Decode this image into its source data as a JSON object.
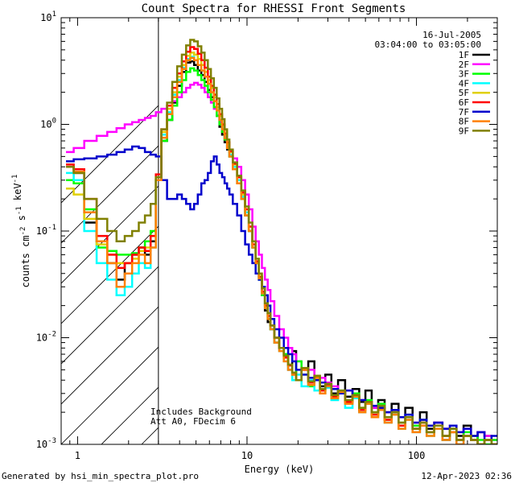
{
  "chart_data": {
    "type": "line",
    "title": "Count Spectra for RHESSI Front Segments",
    "xlabel": "Energy (keV)",
    "ylabel": "counts cm^-2 s^-1 keV^-1",
    "x_scale": "log",
    "y_scale": "log",
    "xlim": [
      0.8,
      300
    ],
    "ylim": [
      0.001,
      10
    ],
    "x_major_ticks": [
      1,
      10,
      100
    ],
    "x_tick_labels": [
      "1",
      "10",
      "100"
    ],
    "y_major_ticks": [
      0.001,
      0.01,
      0.1,
      1,
      10
    ],
    "y_tick_labels": [
      "10-3",
      "10-2",
      "10-1",
      "100",
      "101"
    ],
    "grid": false,
    "legend_placement": "top-right",
    "date": "16-Jul-2005",
    "time_range": "03:04:00 to 03:05:00",
    "annotations": [
      "Includes Background",
      "Att A0, FDecim 6"
    ],
    "hatched_region": {
      "x_from": 0.8,
      "x_to": 3
    },
    "footer_left": "Generated by hsi_min_spectra_plot.pro",
    "footer_right": "12-Apr-2023 02:36",
    "energy": [
      0.9,
      1.0,
      1.2,
      1.4,
      1.6,
      1.8,
      2.0,
      2.2,
      2.4,
      2.6,
      2.8,
      3.0,
      3.25,
      3.5,
      3.75,
      4.0,
      4.25,
      4.5,
      4.75,
      5.0,
      5.25,
      5.5,
      5.75,
      6.0,
      6.25,
      6.5,
      6.75,
      7.0,
      7.25,
      7.5,
      7.75,
      8.0,
      8.5,
      9.0,
      9.5,
      10,
      10.5,
      11,
      11.5,
      12,
      12.5,
      13,
      13.5,
      14,
      15,
      16,
      17,
      18,
      19,
      20,
      22,
      24,
      26,
      28,
      30,
      33,
      36,
      40,
      44,
      48,
      52,
      57,
      62,
      68,
      75,
      82,
      90,
      100,
      110,
      120,
      135,
      150,
      165,
      180,
      200,
      220,
      240,
      265,
      290
    ],
    "series": [
      {
        "name": "1F",
        "color": "#000000",
        "values": [
          0.4,
          0.35,
          0.12,
          0.08,
          0.05,
          0.035,
          0.05,
          0.06,
          0.07,
          0.06,
          0.08,
          0.3,
          0.7,
          1.1,
          1.6,
          2.3,
          3.1,
          3.8,
          3.9,
          3.6,
          3.2,
          2.9,
          2.5,
          2.1,
          1.8,
          1.45,
          1.2,
          0.95,
          0.8,
          0.68,
          0.58,
          0.5,
          0.38,
          0.28,
          0.2,
          0.14,
          0.1,
          0.07,
          0.05,
          0.035,
          0.025,
          0.018,
          0.014,
          0.012,
          0.009,
          0.008,
          0.007,
          0.005,
          0.0075,
          0.004,
          0.005,
          0.006,
          0.004,
          0.0035,
          0.0045,
          0.003,
          0.004,
          0.0028,
          0.0033,
          0.0025,
          0.0032,
          0.0022,
          0.0026,
          0.002,
          0.0024,
          0.0018,
          0.0022,
          0.0015,
          0.002,
          0.0014,
          0.0016,
          0.0011,
          0.0014,
          0.0012,
          0.0015,
          0.0011,
          0.0013,
          0.0012,
          0.001
        ]
      },
      {
        "name": "2F",
        "color": "#ff00ff",
        "values": [
          0.55,
          0.6,
          0.7,
          0.78,
          0.85,
          0.92,
          1.0,
          1.05,
          1.1,
          1.15,
          1.2,
          1.3,
          1.4,
          1.5,
          1.65,
          1.8,
          2.0,
          2.2,
          2.35,
          2.45,
          2.35,
          2.2,
          2.0,
          1.8,
          1.6,
          1.4,
          1.22,
          1.05,
          0.9,
          0.78,
          0.68,
          0.58,
          0.48,
          0.4,
          0.3,
          0.22,
          0.16,
          0.11,
          0.08,
          0.06,
          0.045,
          0.035,
          0.028,
          0.022,
          0.016,
          0.012,
          0.01,
          0.008,
          0.007,
          0.006,
          0.005,
          0.005,
          0.004,
          0.0042,
          0.0038,
          0.0035,
          0.003,
          0.0032,
          0.0028,
          0.0026,
          0.0025,
          0.0022,
          0.0024,
          0.002,
          0.0021,
          0.0018,
          0.0019,
          0.0016,
          0.0017,
          0.0015,
          0.0016,
          0.0014,
          0.0015,
          0.0013,
          0.0014,
          0.0012,
          0.0013,
          0.0012,
          0.0011
        ]
      },
      {
        "name": "3F",
        "color": "#00ff00",
        "values": [
          0.3,
          0.28,
          0.16,
          0.07,
          0.065,
          0.06,
          0.06,
          0.062,
          0.07,
          0.08,
          0.1,
          0.3,
          0.7,
          1.1,
          1.5,
          2.0,
          2.6,
          3.1,
          3.35,
          3.2,
          2.9,
          2.6,
          2.3,
          2.0,
          1.7,
          1.45,
          1.2,
          1.0,
          0.85,
          0.72,
          0.6,
          0.5,
          0.38,
          0.28,
          0.2,
          0.14,
          0.1,
          0.07,
          0.05,
          0.035,
          0.025,
          0.02,
          0.015,
          0.012,
          0.009,
          0.008,
          0.007,
          0.0055,
          0.004,
          0.006,
          0.0045,
          0.0035,
          0.004,
          0.003,
          0.0035,
          0.0028,
          0.0032,
          0.0025,
          0.003,
          0.0022,
          0.0026,
          0.002,
          0.0024,
          0.0018,
          0.002,
          0.0016,
          0.0019,
          0.0015,
          0.0017,
          0.0013,
          0.0015,
          0.0012,
          0.0014,
          0.0011,
          0.0013,
          0.0012,
          0.0011,
          0.001,
          0.0011
        ]
      },
      {
        "name": "4F",
        "color": "#00ffff",
        "values": [
          0.35,
          0.3,
          0.1,
          0.05,
          0.035,
          0.025,
          0.03,
          0.04,
          0.05,
          0.045,
          0.07,
          0.3,
          0.8,
          1.3,
          1.9,
          2.6,
          3.4,
          4.1,
          4.3,
          4.0,
          3.6,
          3.2,
          2.8,
          2.4,
          2.0,
          1.65,
          1.35,
          1.1,
          0.9,
          0.75,
          0.62,
          0.52,
          0.4,
          0.3,
          0.21,
          0.15,
          0.1,
          0.07,
          0.05,
          0.036,
          0.026,
          0.019,
          0.015,
          0.012,
          0.009,
          0.0075,
          0.006,
          0.005,
          0.004,
          0.0045,
          0.0035,
          0.004,
          0.0032,
          0.003,
          0.0034,
          0.0026,
          0.003,
          0.0022,
          0.0027,
          0.002,
          0.0024,
          0.0018,
          0.0021,
          0.0016,
          0.0019,
          0.0014,
          0.0017,
          0.0013,
          0.0015,
          0.0012,
          0.0014,
          0.0011,
          0.0013,
          0.001,
          0.0012,
          0.0011,
          0.001,
          0.0011,
          0.001
        ]
      },
      {
        "name": "5F",
        "color": "#e0d000",
        "values": [
          0.25,
          0.22,
          0.13,
          0.075,
          0.06,
          0.05,
          0.05,
          0.055,
          0.065,
          0.07,
          0.09,
          0.32,
          0.85,
          1.4,
          2.0,
          2.8,
          3.6,
          4.4,
          4.7,
          4.5,
          4.1,
          3.6,
          3.1,
          2.6,
          2.2,
          1.8,
          1.45,
          1.2,
          0.98,
          0.8,
          0.66,
          0.55,
          0.42,
          0.32,
          0.22,
          0.16,
          0.11,
          0.075,
          0.052,
          0.038,
          0.027,
          0.02,
          0.016,
          0.013,
          0.01,
          0.008,
          0.0065,
          0.0055,
          0.0045,
          0.004,
          0.005,
          0.0038,
          0.0042,
          0.0032,
          0.0036,
          0.0028,
          0.0031,
          0.0025,
          0.0028,
          0.0021,
          0.0025,
          0.0019,
          0.0022,
          0.0017,
          0.002,
          0.0015,
          0.0018,
          0.0014,
          0.0016,
          0.0013,
          0.0015,
          0.0012,
          0.0013,
          0.0011,
          0.0012,
          0.0011,
          0.001,
          0.0011,
          0.001
        ]
      },
      {
        "name": "6F",
        "color": "#ff0000",
        "values": [
          0.42,
          0.38,
          0.2,
          0.09,
          0.06,
          0.045,
          0.05,
          0.06,
          0.07,
          0.065,
          0.09,
          0.34,
          0.9,
          1.5,
          2.2,
          3.0,
          3.9,
          4.8,
          5.3,
          5.1,
          4.6,
          4.0,
          3.4,
          2.8,
          2.3,
          1.9,
          1.55,
          1.25,
          1.0,
          0.82,
          0.68,
          0.56,
          0.43,
          0.32,
          0.23,
          0.16,
          0.11,
          0.075,
          0.052,
          0.037,
          0.027,
          0.02,
          0.016,
          0.013,
          0.01,
          0.008,
          0.0065,
          0.0055,
          0.0045,
          0.004,
          0.005,
          0.0038,
          0.0042,
          0.0032,
          0.0036,
          0.0028,
          0.0031,
          0.0025,
          0.0028,
          0.0021,
          0.0025,
          0.0019,
          0.0022,
          0.0017,
          0.002,
          0.0015,
          0.0018,
          0.0014,
          0.0016,
          0.0013,
          0.0015,
          0.0012,
          0.0013,
          0.0011,
          0.0012,
          0.0011,
          0.001,
          0.0011,
          0.001
        ]
      },
      {
        "name": "7F",
        "color": "#0000cc",
        "values": [
          0.45,
          0.47,
          0.48,
          0.5,
          0.52,
          0.55,
          0.58,
          0.62,
          0.6,
          0.55,
          0.52,
          0.5,
          0.3,
          0.2,
          0.2,
          0.22,
          0.2,
          0.18,
          0.16,
          0.18,
          0.22,
          0.28,
          0.3,
          0.35,
          0.45,
          0.5,
          0.42,
          0.35,
          0.32,
          0.28,
          0.25,
          0.22,
          0.18,
          0.14,
          0.1,
          0.075,
          0.06,
          0.05,
          0.04,
          0.035,
          0.03,
          0.025,
          0.02,
          0.015,
          0.012,
          0.01,
          0.008,
          0.007,
          0.006,
          0.005,
          0.0045,
          0.0042,
          0.004,
          0.0038,
          0.0035,
          0.0033,
          0.003,
          0.0032,
          0.0028,
          0.0026,
          0.0025,
          0.0023,
          0.0022,
          0.002,
          0.0021,
          0.0018,
          0.0019,
          0.0016,
          0.0017,
          0.0015,
          0.0016,
          0.0014,
          0.0015,
          0.0013,
          0.0014,
          0.0012,
          0.0013,
          0.0011,
          0.0012
        ]
      },
      {
        "name": "8F",
        "color": "#ff8000",
        "values": [
          0.4,
          0.36,
          0.15,
          0.08,
          0.05,
          0.03,
          0.04,
          0.05,
          0.06,
          0.05,
          0.07,
          0.3,
          0.75,
          1.25,
          1.8,
          2.5,
          3.3,
          4.0,
          4.2,
          4.0,
          3.6,
          3.2,
          2.8,
          2.4,
          2.0,
          1.65,
          1.35,
          1.1,
          0.9,
          0.74,
          0.6,
          0.5,
          0.38,
          0.28,
          0.2,
          0.14,
          0.1,
          0.07,
          0.05,
          0.036,
          0.026,
          0.019,
          0.015,
          0.012,
          0.009,
          0.0075,
          0.006,
          0.005,
          0.0045,
          0.004,
          0.005,
          0.0036,
          0.0042,
          0.003,
          0.0035,
          0.0027,
          0.0031,
          0.0024,
          0.0028,
          0.002,
          0.0024,
          0.0018,
          0.0021,
          0.0016,
          0.0019,
          0.0014,
          0.0017,
          0.0013,
          0.0015,
          0.0012,
          0.0014,
          0.0011,
          0.0013,
          0.001,
          0.0012,
          0.0011,
          0.001,
          0.0011,
          0.001
        ]
      },
      {
        "name": "9F",
        "color": "#808000",
        "values": [
          0.4,
          0.35,
          0.2,
          0.13,
          0.1,
          0.08,
          0.09,
          0.1,
          0.12,
          0.14,
          0.18,
          0.32,
          0.9,
          1.6,
          2.5,
          3.5,
          4.5,
          5.5,
          6.2,
          6.0,
          5.4,
          4.7,
          4.0,
          3.3,
          2.7,
          2.2,
          1.75,
          1.4,
          1.12,
          0.9,
          0.72,
          0.58,
          0.44,
          0.33,
          0.24,
          0.17,
          0.12,
          0.08,
          0.055,
          0.04,
          0.029,
          0.021,
          0.017,
          0.013,
          0.01,
          0.008,
          0.0068,
          0.0056,
          0.0047,
          0.004,
          0.0052,
          0.0039,
          0.0044,
          0.0033,
          0.0037,
          0.0029,
          0.0032,
          0.0026,
          0.0029,
          0.0022,
          0.0025,
          0.002,
          0.0023,
          0.0018,
          0.002,
          0.0016,
          0.0018,
          0.0014,
          0.0016,
          0.0013,
          0.0015,
          0.0012,
          0.0014,
          0.0011,
          0.0012,
          0.0011,
          0.001,
          0.0011,
          0.001
        ]
      }
    ]
  }
}
